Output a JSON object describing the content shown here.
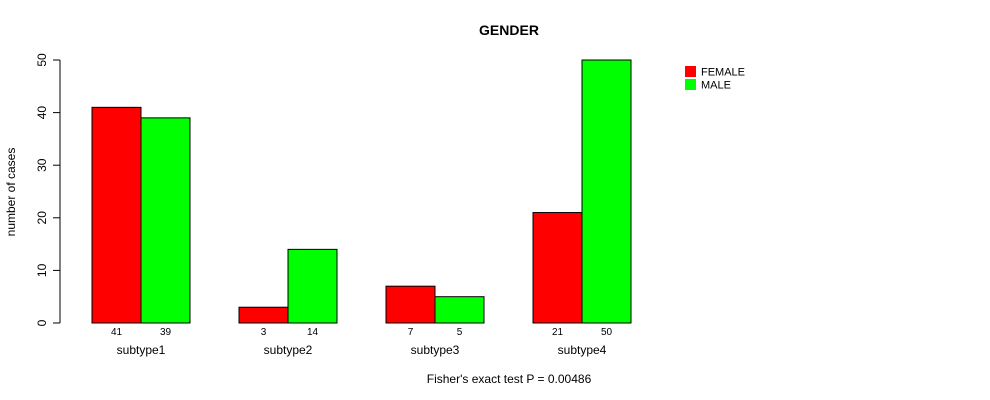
{
  "chart_data": {
    "type": "bar",
    "title": "GENDER",
    "xlabel": "",
    "ylabel": "number of cases",
    "ylim": [
      0,
      50
    ],
    "yticks": [
      0,
      10,
      20,
      30,
      40,
      50
    ],
    "categories": [
      "subtype1",
      "subtype2",
      "subtype3",
      "subtype4"
    ],
    "series": [
      {
        "name": "FEMALE",
        "color": "#ff0000",
        "values": [
          41,
          3,
          7,
          21
        ]
      },
      {
        "name": "MALE",
        "color": "#00ff00",
        "values": [
          39,
          14,
          5,
          50
        ]
      }
    ],
    "legend_position": "top-right",
    "footnote": "Fisher's exact test P = 0.00486"
  }
}
